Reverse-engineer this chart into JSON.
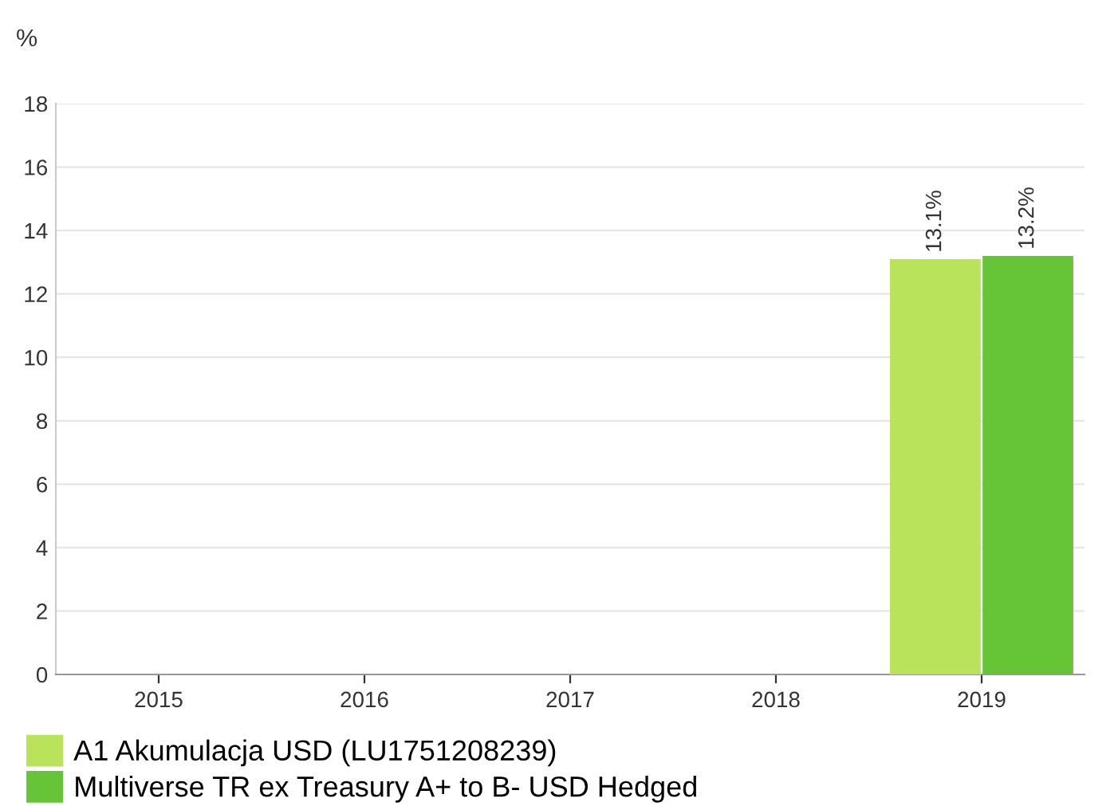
{
  "chart_data": {
    "type": "bar",
    "ylabel": "%",
    "categories": [
      "2015",
      "2016",
      "2017",
      "2018",
      "2019"
    ],
    "series": [
      {
        "name": "A1 Akumulacja USD (LU1751208239)",
        "color": "#b9e35a",
        "values": [
          null,
          null,
          null,
          null,
          13.1
        ],
        "value_labels": [
          null,
          null,
          null,
          null,
          "13.1%"
        ]
      },
      {
        "name": "Multiverse TR ex Treasury A+ to B- USD Hedged",
        "color": "#66c536",
        "values": [
          null,
          null,
          null,
          null,
          13.2
        ],
        "value_labels": [
          null,
          null,
          null,
          null,
          "13.2%"
        ]
      }
    ],
    "ylim": [
      0,
      18
    ],
    "yticks": [
      0,
      2,
      4,
      6,
      8,
      10,
      12,
      14,
      16,
      18
    ],
    "grid": "y",
    "legend": "bottom"
  }
}
